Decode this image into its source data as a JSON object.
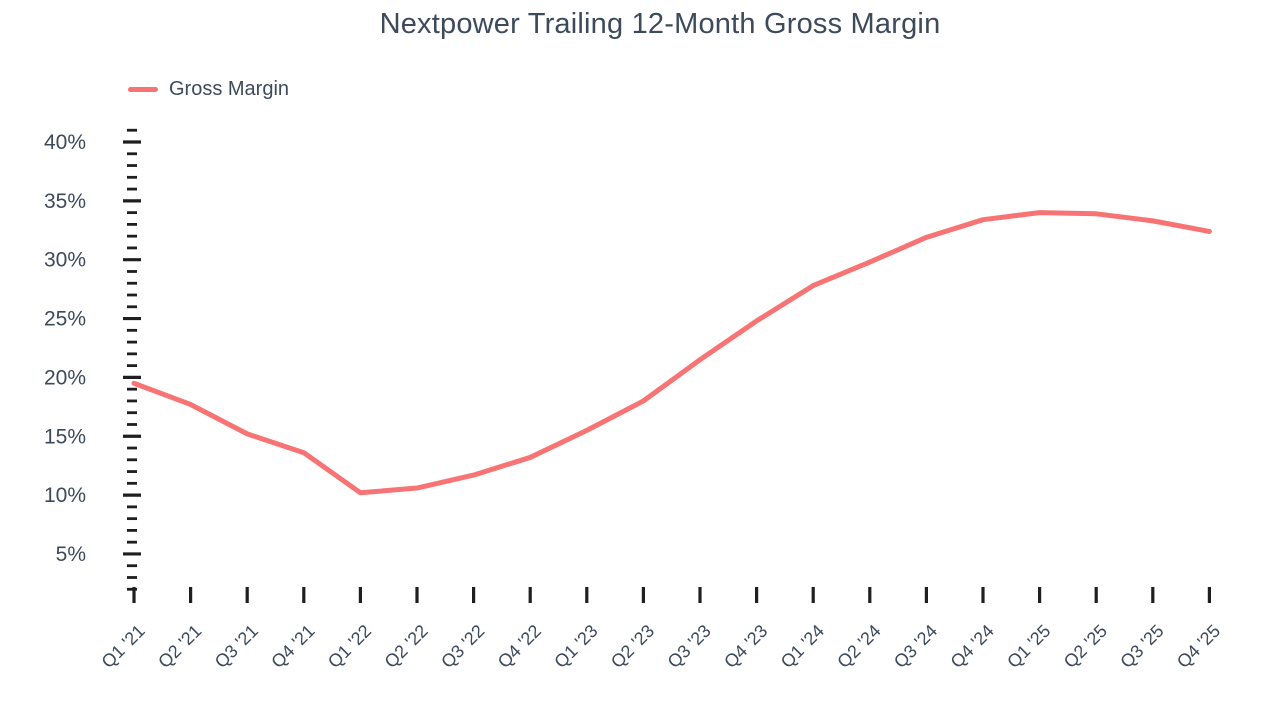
{
  "title": "Nextpower Trailing 12-Month Gross Margin",
  "legend": {
    "label": "Gross Margin"
  },
  "colors": {
    "line": "#f87474",
    "text": "#3d4a5c",
    "tick": "#1f1f1f"
  },
  "chart_data": {
    "type": "line",
    "title": "Nextpower Trailing 12-Month Gross Margin",
    "xlabel": "",
    "ylabel": "",
    "categories": [
      "Q1 '21",
      "Q2 '21",
      "Q3 '21",
      "Q4 '21",
      "Q1 '22",
      "Q2 '22",
      "Q3 '22",
      "Q4 '22",
      "Q1 '23",
      "Q2 '23",
      "Q3 '23",
      "Q4 '23",
      "Q1 '24",
      "Q2 '24",
      "Q3 '24",
      "Q4 '24",
      "Q1 '25",
      "Q2 '25",
      "Q3 '25",
      "Q4 '25"
    ],
    "series": [
      {
        "name": "Gross Margin",
        "values": [
          19.5,
          17.7,
          15.2,
          13.6,
          10.2,
          10.6,
          11.7,
          13.2,
          15.5,
          18.0,
          21.5,
          24.8,
          27.8,
          29.8,
          31.9,
          33.4,
          34.0,
          33.9,
          33.3,
          32.4
        ]
      }
    ],
    "ytick_labels": [
      "40%",
      "35%",
      "30%",
      "25%",
      "20%",
      "15%",
      "10%",
      "5%"
    ],
    "ytick_major_values": [
      40,
      35,
      30,
      25,
      20,
      15,
      10,
      5
    ],
    "ylim": [
      0,
      42
    ],
    "minor_tick_step_pct": 1,
    "grid": false,
    "axis_line": false,
    "legend_position": "top-left"
  }
}
